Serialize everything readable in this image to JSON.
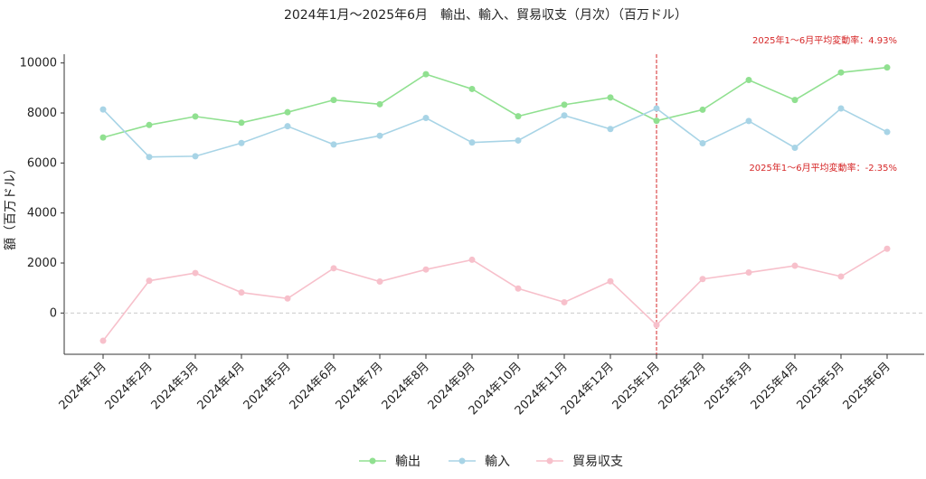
{
  "chart_data": {
    "type": "line",
    "title": "2024年1月～2025年6月　輸出、輸入、貿易収支（月次）（百万ドル）",
    "xlabel": "",
    "ylabel": "額（百万ドル）",
    "ylim": [
      -1650,
      10350
    ],
    "yticks": [
      0,
      2000,
      4000,
      6000,
      8000,
      10000
    ],
    "categories": [
      "2024年1月",
      "2024年2月",
      "2024年3月",
      "2024年4月",
      "2024年5月",
      "2024年6月",
      "2024年7月",
      "2024年8月",
      "2024年9月",
      "2024年10月",
      "2024年11月",
      "2024年12月",
      "2025年1月",
      "2025年2月",
      "2025年3月",
      "2025年4月",
      "2025年5月",
      "2025年6月"
    ],
    "series": [
      {
        "name": "輸出",
        "color": "#90e090",
        "values": [
          7020,
          7520,
          7860,
          7610,
          8030,
          8520,
          8350,
          9550,
          8960,
          7870,
          8330,
          8620,
          7690,
          8130,
          9320,
          8520,
          9620,
          9820
        ]
      },
      {
        "name": "輸入",
        "color": "#a8d4e6",
        "values": [
          8140,
          6240,
          6270,
          6800,
          7470,
          6740,
          7090,
          7800,
          6820,
          6900,
          7900,
          7360,
          8180,
          6790,
          7680,
          6610,
          8180,
          7240
        ]
      },
      {
        "name": "貿易収支",
        "color": "#f7c0cb",
        "values": [
          -1110,
          1290,
          1600,
          820,
          580,
          1790,
          1260,
          1740,
          2130,
          980,
          430,
          1270,
          -480,
          1360,
          1620,
          1890,
          1460,
          2570
        ]
      }
    ],
    "annotations": [
      {
        "text": "2025年1～6月平均変動率：4.93%"
      },
      {
        "text": "2025年1～6月平均変動率：-2.35%"
      }
    ],
    "vline_at": "2025年1月",
    "hline_at": 0,
    "legend_position": "bottom-center",
    "grid": false
  }
}
